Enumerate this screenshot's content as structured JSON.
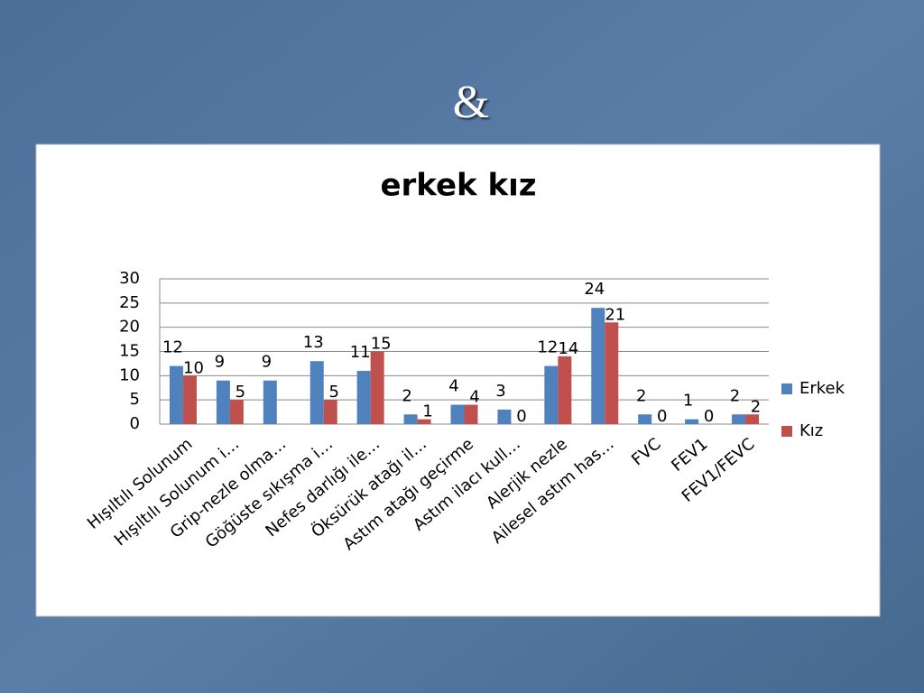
{
  "slide_title": "&",
  "chart_data": {
    "type": "bar",
    "title": "erkek kız",
    "categories": [
      "Hışıltılı Solunum",
      "Hışıltılı Solunum i…",
      "Grip-nezle olma…",
      "Göğüste sıkışma i…",
      "Nefes darlığı ile…",
      "Öksürük atağı il…",
      "Astım atağı geçirme",
      "Astım ilacı kull…",
      "Alerjik nezle",
      "Ailesel astım has…",
      "FVC",
      "FEV1",
      "FEV1/FEVC"
    ],
    "series": [
      {
        "name": "Erkek",
        "color": "#4f81bd",
        "values": [
          12,
          9,
          9,
          13,
          11,
          2,
          4,
          3,
          12,
          24,
          2,
          1,
          2
        ]
      },
      {
        "name": "Kız",
        "color": "#c0504d",
        "values": [
          10,
          5,
          null,
          5,
          15,
          1,
          4,
          0,
          14,
          21,
          0,
          0,
          2
        ]
      }
    ],
    "ylim": [
      0,
      30
    ],
    "yticks": [
      0,
      5,
      10,
      15,
      20,
      25,
      30
    ],
    "grid": true,
    "legend": "right"
  }
}
